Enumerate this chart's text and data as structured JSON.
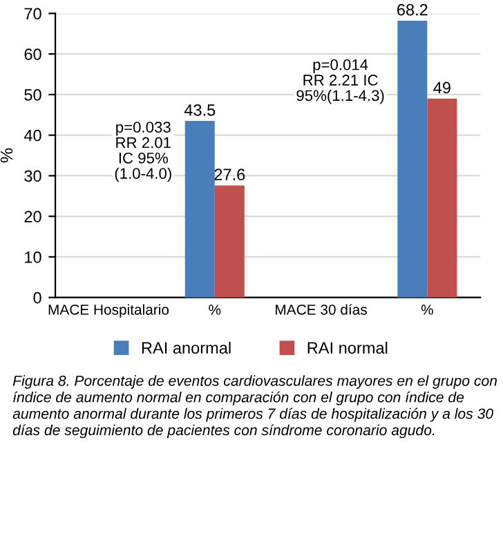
{
  "chart_data": {
    "type": "bar",
    "ylabel": "%",
    "categories": [
      "MACE Hospitalario",
      "%",
      "MACE 30 días",
      "%"
    ],
    "series": [
      {
        "name": "RAI anormal",
        "color": "#4a7ebb",
        "values": [
          null,
          43.5,
          null,
          68.2
        ]
      },
      {
        "name": "RAI normal",
        "color": "#c0504d",
        "values": [
          null,
          27.6,
          null,
          49
        ]
      }
    ],
    "ylim": [
      0,
      70
    ],
    "yticks": [
      0,
      10,
      20,
      30,
      40,
      50,
      60,
      70
    ],
    "grid": "y",
    "legend": "bottom",
    "data_labels": true,
    "annotations": [
      "p=0.033\nRR 2.01\nIC 95%\n(1.0-4.0)",
      "p=0.014\nRR 2.21 IC\n95%(1.1-4.3)",
      "Figura 8. Porcentaje de eventos cardiovasculares mayores en el grupo con índice de aumento normal en comparación con el grupo con índice de aumento anormal durante los primeros 7 días de hospitalización y a los 30 días de seguimiento de pacientes con síndrome coronario agudo."
    ]
  }
}
